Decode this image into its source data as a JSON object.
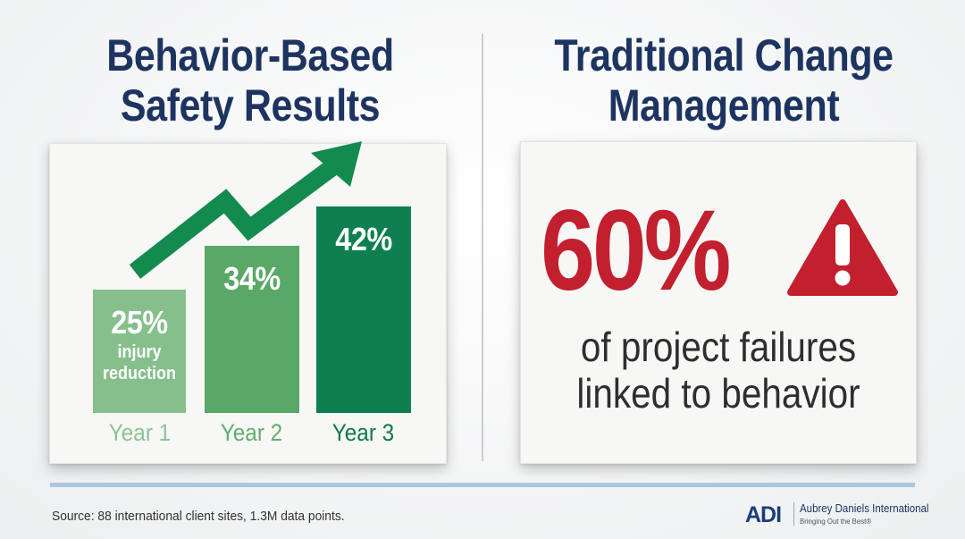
{
  "left_panel": {
    "title_line1": "Behavior-Based",
    "title_line2": "Safety Results",
    "bars": [
      {
        "label": "Year 1",
        "value_text": "25%",
        "sub1": "injury",
        "sub2": "reduction",
        "value": 25,
        "color": "#86bf8c",
        "label_color": "#8cc493"
      },
      {
        "label": "Year 2",
        "value_text": "34%",
        "sub1": "",
        "sub2": "",
        "value": 34,
        "color": "#5aa868",
        "label_color": "#63ad70"
      },
      {
        "label": "Year 3",
        "value_text": "42%",
        "sub1": "",
        "sub2": "",
        "value": 42,
        "color": "#0e8050",
        "label_color": "#0e7a4a"
      }
    ],
    "arrow_color": "#138a4e"
  },
  "right_panel": {
    "title_line1": "Traditional Change",
    "title_line2": "Management",
    "big_stat": "60%",
    "caption_line1": "of project failures",
    "caption_line2": "linked to behavior",
    "stat_color": "#c2202f",
    "icon": "warning-triangle-icon"
  },
  "footer": {
    "source": "Source: 88 international client sites, 1.3M data points.",
    "logo_mark": "ADI",
    "logo_name": "Aubrey Daniels International",
    "logo_tagline": "Bringing Out the Best®"
  }
}
